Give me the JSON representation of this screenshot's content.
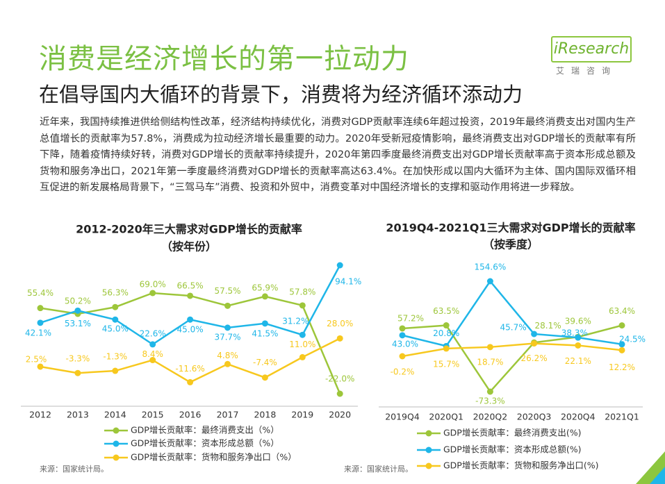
{
  "header": {
    "title": "消费是经济增长的第一拉动力",
    "subtitle": "在倡导国内大循环的背景下，消费将为经济循环添动力",
    "logo": "iResearch",
    "logo_sub": "艾瑞咨询"
  },
  "body": "近年来，我国持续推进供给侧结构性改革，经济结构持续优化，消费对GDP贡献率连续6年超过投资，2019年最终消费支出对国内生产总值增长的贡献率为57.8%，消费成为拉动经济增长最重要的动力。2020年受新冠疫情影响，最终消费支出对GDP增长的贡献率有所下降，随着疫情持续好转，消费对GDP增长的贡献率持续提升，2020年第四季度最终消费支出对GDP增长贡献率高于资本形成总额及货物和服务净出口，2021年第一季度最终消费对GDP增长的贡献率高达63.4%。在加快形成以国内大循环为主体、国内国际双循环相互促进的新发展格局背景下，“三驾马车”消费、投资和外贸中，消费变革对中国经济增长的支撑和驱动作用将进一步释放。",
  "chart_data": [
    {
      "type": "line",
      "title": "2012-2020年三大需求对GDP增长的贡献率",
      "subtitle": "（按年份）",
      "source": "来源：国家统计局。",
      "categories": [
        "2012",
        "2013",
        "2014",
        "2015",
        "2016",
        "2017",
        "2018",
        "2019",
        "2020"
      ],
      "series": [
        {
          "name": "GDP增长贡献率：最终消费支出（%）",
          "color": "#9dc63a",
          "values": [
            55.4,
            50.2,
            56.3,
            69.0,
            66.5,
            57.5,
            65.9,
            57.8,
            -22.0
          ],
          "value_labels": [
            "55.4%",
            "50.2%",
            "56.3%",
            "69.0%",
            "66.5%",
            "57.5%",
            "65.9%",
            "57.8%",
            "-22.0%"
          ]
        },
        {
          "name": "GDP增长贡献率：资本形成总额（%）",
          "color": "#1fb6e8",
          "values": [
            42.1,
            53.1,
            45.0,
            22.6,
            45.0,
            37.7,
            41.5,
            31.2,
            94.1
          ],
          "value_labels": [
            "42.1%",
            "53.1%",
            "45.0%",
            "22.6%",
            "45.0%",
            "37.7%",
            "41.5%",
            "31.2%",
            "94.1%"
          ]
        },
        {
          "name": "GDP增长贡献率：货物和服务净出口（%）",
          "color": "#f7c81e",
          "values": [
            2.5,
            -3.3,
            -1.3,
            8.4,
            -11.6,
            4.8,
            -7.4,
            11.0,
            28.0
          ],
          "value_labels": [
            "2.5%",
            "-3.3%",
            "-1.3%",
            "8.4%",
            "-11.6%",
            "4.8%",
            "-7.4%",
            "11.0%",
            "28.0%"
          ]
        }
      ]
    },
    {
      "type": "line",
      "title": "2019Q4-2021Q1三大需求对GDP增长的贡献率",
      "subtitle": "（按季度）",
      "source": "来源：国家统计局。",
      "categories": [
        "2019Q4",
        "2020Q1",
        "2020Q2",
        "2020Q3",
        "2020Q4",
        "2021Q1"
      ],
      "series": [
        {
          "name": "GDP增长贡献率：最终消费支出(%)",
          "color": "#9dc63a",
          "values": [
            57.2,
            63.5,
            -73.3,
            28.1,
            39.6,
            63.4
          ],
          "value_labels": [
            "57.2%",
            "63.5%",
            "-73.3%",
            "28.1%",
            "39.6%",
            "63.4%"
          ]
        },
        {
          "name": "GDP增长贡献率：资本形成总额(%)",
          "color": "#1fb6e8",
          "values": [
            43.0,
            20.8,
            154.6,
            45.7,
            38.3,
            24.5
          ],
          "value_labels": [
            "43.0%",
            "20.8%",
            "154.6%",
            "45.7%",
            "38.3%",
            "24.5%"
          ]
        },
        {
          "name": "GDP增长贡献率：货物和服务净出口(%)",
          "color": "#f7c81e",
          "values": [
            -0.2,
            15.7,
            18.7,
            26.2,
            22.1,
            12.2
          ],
          "value_labels": [
            "-0.2%",
            "15.7%",
            "18.7%",
            "26.2%",
            "22.1%",
            "12.2%"
          ]
        }
      ]
    }
  ]
}
